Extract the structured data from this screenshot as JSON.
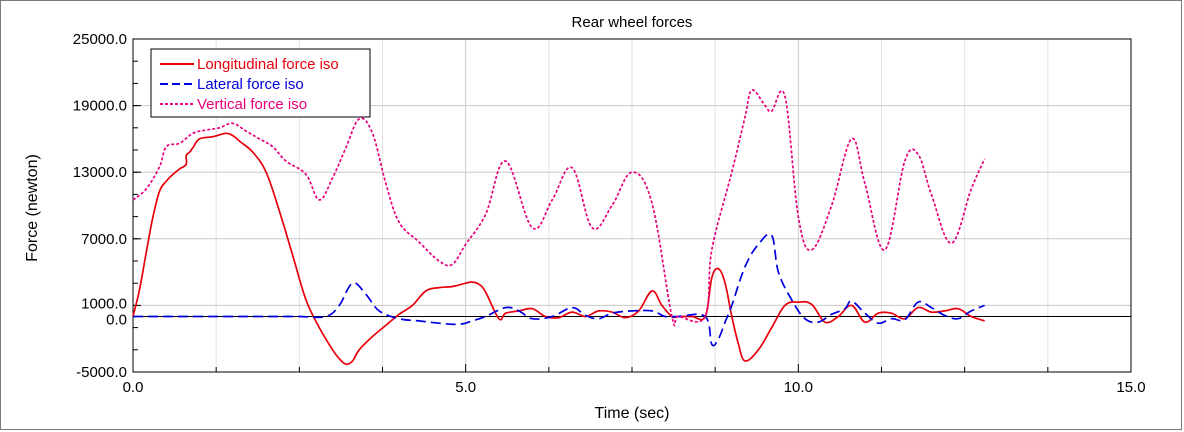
{
  "chart_data": {
    "type": "line",
    "title": "Rear wheel forces",
    "xlabel": "Time (sec)",
    "ylabel": "Force (newton)",
    "xlim": [
      0,
      15
    ],
    "ylim": [
      -5000,
      25000
    ],
    "x_ticks": [
      0,
      5,
      10,
      15
    ],
    "x_tick_labels": [
      "0.0",
      "5.0",
      "10.0",
      "15.0"
    ],
    "y_ticks": [
      -5000,
      0,
      1000,
      7000,
      13000,
      19000,
      25000
    ],
    "y_tick_labels": [
      "-5000.0",
      "0.0",
      "1000.0",
      "7000.0",
      "13000.0",
      "19000.0",
      "25000.0"
    ],
    "grid": true,
    "legend_position": "top-left",
    "series": [
      {
        "name": "Longitudinal force iso",
        "color": "#e8000b",
        "dash": "solid",
        "x": [
          0,
          0.1,
          0.2,
          0.3,
          0.4,
          0.5,
          0.6,
          0.7,
          0.8,
          0.8,
          0.85,
          0.9,
          1.0,
          1.2,
          1.4,
          1.5,
          1.6,
          1.8,
          2.0,
          2.2,
          2.4,
          2.6,
          2.8,
          3.0,
          3.1,
          3.2,
          3.3,
          3.4,
          3.6,
          3.8,
          4.0,
          4.2,
          4.4,
          4.6,
          4.8,
          5.0,
          5.1,
          5.2,
          5.3,
          5.5,
          5.6,
          5.8,
          6.0,
          6.2,
          6.4,
          6.6,
          6.8,
          7.0,
          7.2,
          7.4,
          7.6,
          7.8,
          7.95,
          8.1,
          8.2,
          8.4,
          8.6,
          8.7,
          8.8,
          8.9,
          9.0,
          9.1,
          9.2,
          9.4,
          9.6,
          9.8,
          10.0,
          10.2,
          10.4,
          10.6,
          10.8,
          11.0,
          11.2,
          11.4,
          11.6,
          11.8,
          12.0,
          12.2,
          12.4,
          12.6,
          12.8
        ],
        "values": [
          0,
          2500,
          5800,
          9000,
          11300,
          12200,
          12800,
          13300,
          13700,
          14500,
          14800,
          15200,
          16000,
          16200,
          16500,
          16300,
          15800,
          14800,
          13000,
          9500,
          5500,
          1500,
          -1000,
          -3000,
          -3800,
          -4300,
          -4000,
          -3000,
          -1800,
          -800,
          200,
          1000,
          2300,
          2600,
          2700,
          3000,
          3100,
          2900,
          2200,
          -200,
          300,
          500,
          700,
          0,
          -100,
          400,
          0,
          500,
          400,
          -100,
          500,
          2300,
          1000,
          0,
          0,
          0,
          0,
          3500,
          4300,
          3000,
          0,
          -2500,
          -4000,
          -3000,
          -1000,
          1000,
          1300,
          1100,
          -500,
          0,
          1000,
          -500,
          300,
          300,
          -200,
          800,
          400,
          500,
          700,
          0,
          -400
        ]
      },
      {
        "name": "Lateral force iso",
        "color": "#0000e0",
        "dash": "dashed",
        "x": [
          0,
          0.5,
          1.0,
          1.5,
          2.0,
          2.5,
          2.9,
          3.1,
          3.3,
          3.5,
          3.7,
          4.0,
          4.3,
          4.6,
          4.9,
          5.1,
          5.3,
          5.6,
          5.8,
          6.0,
          6.3,
          6.6,
          6.8,
          7.0,
          7.2,
          7.5,
          7.8,
          8.0,
          8.2,
          8.6,
          8.7,
          8.8,
          8.9,
          9.0,
          9.2,
          9.4,
          9.6,
          9.7,
          9.9,
          10.1,
          10.3,
          10.5,
          10.7,
          10.8,
          11.0,
          11.2,
          11.4,
          11.6,
          11.8,
          12.0,
          12.2,
          12.4,
          12.6,
          12.8
        ],
        "values": [
          0,
          0,
          0,
          0,
          0,
          0,
          0,
          1000,
          3000,
          2000,
          500,
          -200,
          -400,
          -600,
          -700,
          -400,
          0,
          800,
          500,
          -200,
          0,
          800,
          100,
          -200,
          300,
          500,
          500,
          0,
          0,
          0,
          -2500,
          -2000,
          -500,
          1000,
          4500,
          6500,
          7300,
          4000,
          1500,
          -200,
          -500,
          200,
          700,
          1400,
          300,
          -600,
          -200,
          -300,
          1300,
          800,
          100,
          -200,
          500,
          1000
        ]
      },
      {
        "name": "Vertical force iso",
        "color": "#e8007d",
        "dash": "dotted",
        "x": [
          0,
          0.2,
          0.4,
          0.5,
          0.7,
          0.9,
          1.1,
          1.3,
          1.5,
          1.7,
          1.9,
          2.1,
          2.3,
          2.6,
          2.8,
          3.0,
          3.2,
          3.4,
          3.6,
          3.8,
          4.0,
          4.3,
          4.6,
          4.8,
          5.0,
          5.3,
          5.6,
          6.0,
          6.3,
          6.6,
          6.9,
          7.2,
          7.5,
          7.8,
          8.1,
          8.2,
          8.6,
          8.7,
          9.0,
          9.2,
          9.3,
          9.5,
          9.6,
          9.8,
          10.0,
          10.2,
          10.5,
          10.8,
          11.0,
          11.3,
          11.6,
          11.8,
          12.0,
          12.3,
          12.6,
          12.8
        ],
        "values": [
          10500,
          11500,
          13500,
          15300,
          15600,
          16500,
          16800,
          17000,
          17400,
          16700,
          16000,
          15300,
          14000,
          12800,
          10500,
          12500,
          15200,
          17800,
          16500,
          12000,
          8500,
          6700,
          5000,
          4700,
          6500,
          9200,
          14000,
          8000,
          10500,
          13400,
          8000,
          10000,
          13000,
          10200,
          0,
          0,
          0,
          6000,
          13000,
          18000,
          20400,
          19000,
          18500,
          19800,
          9000,
          6000,
          10000,
          16000,
          12000,
          6000,
          14000,
          14600,
          11000,
          6600,
          11500,
          14200
        ]
      }
    ]
  }
}
